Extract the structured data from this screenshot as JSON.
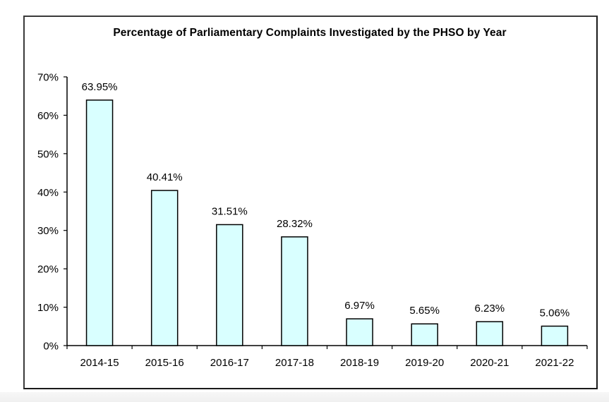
{
  "chart_data": {
    "type": "bar",
    "title": "Percentage of Parliamentary Complaints Investigated by the PHSO by Year",
    "xlabel": "",
    "ylabel": "",
    "categories": [
      "2014-15",
      "2015-16",
      "2016-17",
      "2017-18",
      "2018-19",
      "2019-20",
      "2020-21",
      "2021-22"
    ],
    "values": [
      63.95,
      40.41,
      31.51,
      28.32,
      6.97,
      5.65,
      6.23,
      5.06
    ],
    "data_labels": [
      "63.95%",
      "40.41%",
      "31.51%",
      "28.32%",
      "6.97%",
      "5.65%",
      "6.23%",
      "5.06%"
    ],
    "ylim": [
      0,
      70
    ],
    "yticks": [
      0,
      10,
      20,
      30,
      40,
      50,
      60,
      70
    ],
    "ytick_labels": [
      "0%",
      "10%",
      "20%",
      "30%",
      "40%",
      "50%",
      "60%",
      "70%"
    ],
    "grid": false,
    "legend": "none",
    "colors": {
      "bar_fill": "#d9ffff",
      "bar_stroke": "#000000",
      "axis": "#000000"
    }
  }
}
